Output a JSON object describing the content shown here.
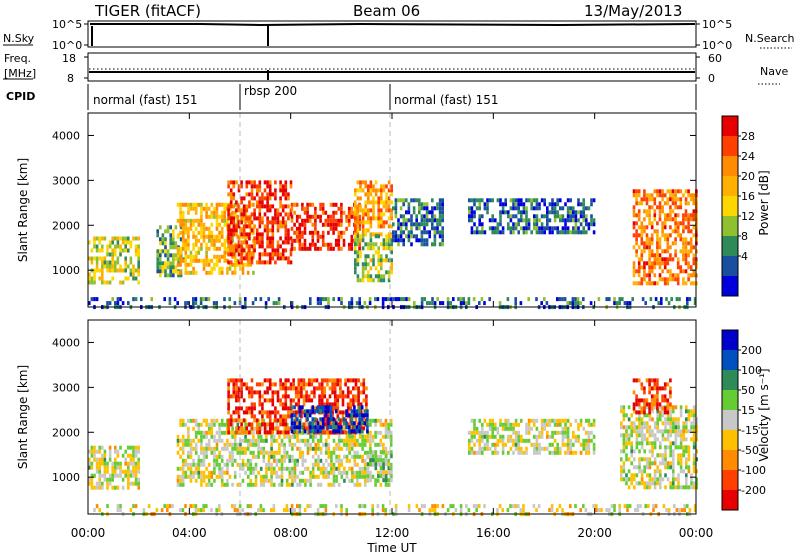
{
  "header": {
    "title": "TIGER (fitACF)",
    "beam": "Beam 06",
    "date": "13/May/2013"
  },
  "summary": {
    "nsky_label": "N.Sky",
    "nsky_ticks": [
      "10^5",
      "10^0"
    ],
    "nsearch_label": "N.Search",
    "nsearch_ticks": [
      "10^5",
      "10^0"
    ],
    "freq_label_line1": "Freq.",
    "freq_label_line2": "[MHz]",
    "freq_ticks": [
      "18",
      "8"
    ],
    "nave_label": "Nave",
    "nave_ticks": [
      "60",
      "0"
    ],
    "cpid_label": "CPID"
  },
  "cpid_segments": [
    {
      "label": "normal (fast) 151",
      "start": 0,
      "end": 6
    },
    {
      "label": "rbsp 200",
      "start": 6,
      "end": 12
    },
    {
      "label": "normal (fast) 151",
      "start": 12,
      "end": 24
    }
  ],
  "axes": {
    "y_label": "Slant Range [km]",
    "y_ticks": [
      "1000",
      "2000",
      "3000",
      "4000"
    ],
    "x_label": "Time UT",
    "x_ticks": [
      "00:00",
      "04:00",
      "08:00",
      "12:00",
      "16:00",
      "20:00",
      "00:00"
    ]
  },
  "power_colorbar": {
    "label": "Power [dB]",
    "ticks": [
      "28",
      "24",
      "20",
      "16",
      "12",
      "8",
      "4"
    ],
    "colors": [
      "#e60000",
      "#ff4000",
      "#ff8c00",
      "#ffb000",
      "#ffd700",
      "#90c030",
      "#2e8b57",
      "#1a4fa0",
      "#0000dd"
    ]
  },
  "velocity_colorbar": {
    "label": "Velocity [m s⁻¹]",
    "ticks": [
      "200",
      "100",
      "50",
      "15",
      "-15",
      "-50",
      "-100",
      "-200"
    ],
    "colors": [
      "#0000cc",
      "#0050c0",
      "#2e8b57",
      "#66cc33",
      "#c8c8c8",
      "#ffc000",
      "#ff8c00",
      "#ff4000",
      "#e60000"
    ]
  },
  "chart_data": [
    {
      "type": "heatmap",
      "title": "TIGER (fitACF) Beam 06 13/May/2013",
      "quantity": "Power",
      "xlabel": "Time UT",
      "ylabel": "Slant Range [km]",
      "xlim": [
        0,
        24
      ],
      "ylim": [
        180,
        4500
      ],
      "colorbar_range": [
        0,
        30
      ],
      "regions": [
        {
          "t": [
            0.0,
            2.0
          ],
          "r": [
            750,
            1750
          ],
          "value": 14
        },
        {
          "t": [
            2.7,
            3.8
          ],
          "r": [
            900,
            2000
          ],
          "value": 10
        },
        {
          "t": [
            3.5,
            6.5
          ],
          "r": [
            900,
            2500
          ],
          "value": 18
        },
        {
          "t": [
            5.5,
            8.0
          ],
          "r": [
            1200,
            3000
          ],
          "value": 26
        },
        {
          "t": [
            8.0,
            10.7
          ],
          "r": [
            1500,
            2500
          ],
          "value": 26
        },
        {
          "t": [
            10.5,
            12.0
          ],
          "r": [
            1800,
            3000
          ],
          "value": 20
        },
        {
          "t": [
            10.5,
            12.0
          ],
          "r": [
            800,
            1800
          ],
          "value": 12
        },
        {
          "t": [
            12.0,
            14.0
          ],
          "r": [
            1600,
            2600
          ],
          "value": 6
        },
        {
          "t": [
            15.0,
            20.0
          ],
          "r": [
            1800,
            2600
          ],
          "value": 6
        },
        {
          "t": [
            21.5,
            24.0
          ],
          "r": [
            700,
            2800
          ],
          "value": 22
        },
        {
          "t": [
            0.0,
            24.0
          ],
          "r": [
            200,
            400
          ],
          "value": 6
        }
      ]
    },
    {
      "type": "heatmap",
      "quantity": "Velocity",
      "xlabel": "Time UT",
      "ylabel": "Slant Range [km]",
      "xlim": [
        0,
        24
      ],
      "ylim": [
        180,
        4500
      ],
      "colorbar_range": [
        -200,
        200
      ],
      "regions": [
        {
          "t": [
            0.0,
            2.0
          ],
          "r": [
            750,
            1700
          ],
          "value": 0
        },
        {
          "t": [
            3.5,
            12.0
          ],
          "r": [
            800,
            2300
          ],
          "value": 0
        },
        {
          "t": [
            5.5,
            11.0
          ],
          "r": [
            2000,
            3200
          ],
          "value": -150
        },
        {
          "t": [
            8.0,
            11.0
          ],
          "r": [
            2000,
            2600
          ],
          "value": 150
        },
        {
          "t": [
            11.0,
            12.0
          ],
          "r": [
            900,
            1600
          ],
          "value": 40
        },
        {
          "t": [
            15.0,
            20.0
          ],
          "r": [
            1500,
            2300
          ],
          "value": 0
        },
        {
          "t": [
            21.0,
            24.0
          ],
          "r": [
            800,
            2600
          ],
          "value": 0
        },
        {
          "t": [
            21.5,
            23.0
          ],
          "r": [
            2400,
            3200
          ],
          "value": -150
        },
        {
          "t": [
            0.0,
            24.0
          ],
          "r": [
            200,
            400
          ],
          "value": -20
        }
      ]
    }
  ]
}
